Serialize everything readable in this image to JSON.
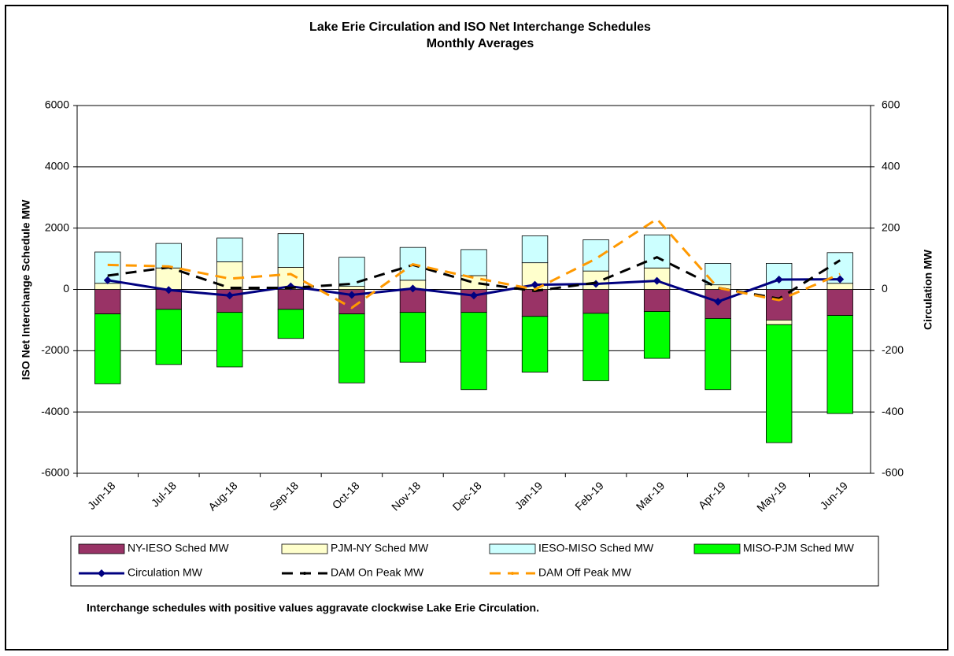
{
  "chart_data": {
    "type": "bar",
    "title": "Lake Erie Circulation and ISO Net Interchange Schedules",
    "subtitle": "Monthly Averages",
    "y_label": "ISO Net Interchange Schedule MW",
    "y2_label": "Circulation MW",
    "annotation": "Interchange schedules with positive values aggravate clockwise Lake Erie Circulation.",
    "categories": [
      "Jun-18",
      "Jul-18",
      "Aug-18",
      "Sep-18",
      "Oct-18",
      "Nov-18",
      "Dec-18",
      "Jan-19",
      "Feb-19",
      "Mar-19",
      "Apr-19",
      "May-19",
      "Jun-19"
    ],
    "stacked": true,
    "series": [
      {
        "name": "NY-IESO Sched MW",
        "color": "#993366",
        "values": [
          -800,
          -650,
          -750,
          -650,
          -800,
          -750,
          -750,
          -880,
          -780,
          -720,
          -950,
          -1000,
          -850
        ]
      },
      {
        "name": "PJM-NY Sched MW",
        "color": "#FFFFCC",
        "values": [
          200,
          700,
          900,
          720,
          100,
          300,
          450,
          870,
          600,
          700,
          150,
          -150,
          200
        ]
      },
      {
        "name": "IESO-MISO Sched MW",
        "color": "#CCFFFF",
        "values": [
          1020,
          800,
          780,
          1100,
          950,
          1070,
          850,
          880,
          1020,
          1080,
          700,
          850,
          1000
        ]
      },
      {
        "name": "MISO-PJM Sched MW",
        "color": "#00FF00",
        "values": [
          -2280,
          -1800,
          -1780,
          -950,
          -2250,
          -1630,
          -2520,
          -1820,
          -2200,
          -1530,
          -2320,
          -3850,
          -3200
        ]
      },
      {
        "name": "Circulation MW",
        "type": "line",
        "axis": "y2",
        "color": "#000080",
        "marker": "diamond",
        "values": [
          30,
          -2,
          -20,
          10,
          -18,
          3,
          -20,
          15,
          18,
          28,
          -40,
          32,
          33
        ]
      },
      {
        "name": "DAM On Peak MW",
        "type": "line",
        "axis": "y2",
        "color": "#000000",
        "dashed": true,
        "values": [
          45,
          72,
          5,
          5,
          18,
          80,
          22,
          -5,
          22,
          105,
          5,
          -30,
          95
        ]
      },
      {
        "name": "DAM Off Peak MW",
        "type": "line",
        "axis": "y2",
        "color": "#FF9900",
        "dashed": true,
        "values": [
          80,
          75,
          35,
          50,
          -60,
          82,
          38,
          0,
          100,
          230,
          5,
          -35,
          50
        ]
      }
    ],
    "ylim": [
      -6000,
      6000
    ],
    "yticks": [
      -6000,
      -4000,
      -2000,
      0,
      2000,
      4000,
      6000
    ],
    "y2lim": [
      -600,
      600
    ],
    "y2ticks": [
      -600,
      -400,
      -200,
      0,
      200,
      400,
      600
    ],
    "grid": true,
    "legend": "bottom"
  }
}
